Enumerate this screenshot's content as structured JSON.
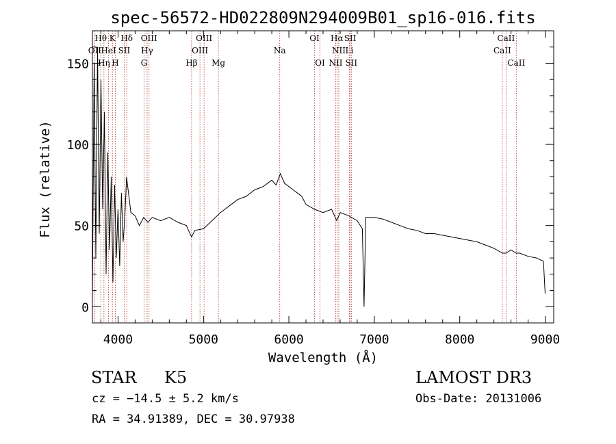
{
  "chart_data": {
    "type": "line",
    "title": "spec-56572-HD022809N294009B01_sp16-016.fits",
    "xlabel": "Wavelength (Å)",
    "ylabel": "Flux (relative)",
    "xlim": [
      3700,
      9100
    ],
    "ylim": [
      -10,
      170
    ],
    "xticks": [
      4000,
      5000,
      6000,
      7000,
      8000,
      9000
    ],
    "yticks": [
      0,
      50,
      100,
      150
    ],
    "series": [
      {
        "name": "flux",
        "x": [
          3700,
          3720,
          3740,
          3760,
          3780,
          3800,
          3820,
          3840,
          3860,
          3880,
          3900,
          3920,
          3940,
          3960,
          3980,
          4000,
          4020,
          4040,
          4060,
          4080,
          4100,
          4150,
          4200,
          4250,
          4300,
          4350,
          4400,
          4500,
          4600,
          4700,
          4800,
          4860,
          4900,
          5000,
          5100,
          5200,
          5300,
          5400,
          5500,
          5600,
          5700,
          5800,
          5850,
          5900,
          5950,
          6000,
          6050,
          6100,
          6150,
          6200,
          6300,
          6400,
          6500,
          6560,
          6600,
          6700,
          6800,
          6860,
          6880,
          6900,
          7000,
          7100,
          7200,
          7300,
          7400,
          7500,
          7600,
          7700,
          7800,
          7900,
          8000,
          8100,
          8200,
          8300,
          8400,
          8500,
          8540,
          8600,
          8660,
          8700,
          8800,
          8900,
          8980,
          9000
        ],
        "y": [
          5,
          150,
          30,
          160,
          45,
          140,
          60,
          120,
          20,
          95,
          35,
          80,
          15,
          75,
          30,
          60,
          25,
          70,
          40,
          55,
          80,
          58,
          56,
          50,
          55,
          52,
          55,
          53,
          55,
          52,
          50,
          43,
          47,
          48,
          53,
          58,
          62,
          66,
          68,
          72,
          74,
          78,
          75,
          82,
          76,
          74,
          72,
          70,
          68,
          63,
          60,
          58,
          60,
          53,
          58,
          56,
          53,
          48,
          0,
          55,
          55,
          54,
          52,
          50,
          48,
          47,
          45,
          45,
          44,
          43,
          42,
          41,
          40,
          38,
          36,
          33,
          33,
          35,
          33,
          33,
          31,
          30,
          28,
          8
        ]
      }
    ],
    "line_markers": [
      {
        "label": "Hθ",
        "wl": 3798,
        "row": 0
      },
      {
        "label": "K",
        "wl": 3934,
        "row": 0
      },
      {
        "label": "Hδ",
        "wl": 4102,
        "row": 0
      },
      {
        "label": "OIII",
        "wl": 4363,
        "row": 0
      },
      {
        "label": "OIII",
        "wl": 5007,
        "row": 0
      },
      {
        "label": "OI",
        "wl": 6300,
        "row": 0
      },
      {
        "label": "Hα",
        "wl": 6563,
        "row": 0
      },
      {
        "label": "SII",
        "wl": 6717,
        "row": 0
      },
      {
        "label": "CaII",
        "wl": 8542,
        "row": 0
      },
      {
        "label": "OII",
        "wl": 3727,
        "row": 1
      },
      {
        "label": "HeI",
        "wl": 3889,
        "row": 1
      },
      {
        "label": "SII",
        "wl": 4072,
        "row": 1
      },
      {
        "label": "Hγ",
        "wl": 4340,
        "row": 1
      },
      {
        "label": "OIII",
        "wl": 4959,
        "row": 1
      },
      {
        "label": "Na",
        "wl": 5893,
        "row": 1
      },
      {
        "label": "NII",
        "wl": 6584,
        "row": 1
      },
      {
        "label": "Li",
        "wl": 6708,
        "row": 1
      },
      {
        "label": "CaII",
        "wl": 8498,
        "row": 1
      },
      {
        "label": "Hη",
        "wl": 3835,
        "row": 2
      },
      {
        "label": "H",
        "wl": 3968,
        "row": 2
      },
      {
        "label": "G",
        "wl": 4305,
        "row": 2
      },
      {
        "label": "Hβ",
        "wl": 4861,
        "row": 2
      },
      {
        "label": "Mg",
        "wl": 5175,
        "row": 2
      },
      {
        "label": "OI",
        "wl": 6364,
        "row": 2
      },
      {
        "label": "NII",
        "wl": 6548,
        "row": 2
      },
      {
        "label": "SII",
        "wl": 6731,
        "row": 2
      },
      {
        "label": "CaII",
        "wl": 8662,
        "row": 2
      }
    ]
  },
  "info": {
    "object_class": "STAR",
    "subclass": "K5",
    "survey": "LAMOST DR3",
    "cz": "cz = −14.5 ± 5.2 km/s",
    "obs_date": "Obs-Date: 20131006",
    "coords": "RA =  34.91389, DEC =  30.97938"
  },
  "colors": {
    "marker": "#b03030",
    "spectrum": "#000000"
  }
}
